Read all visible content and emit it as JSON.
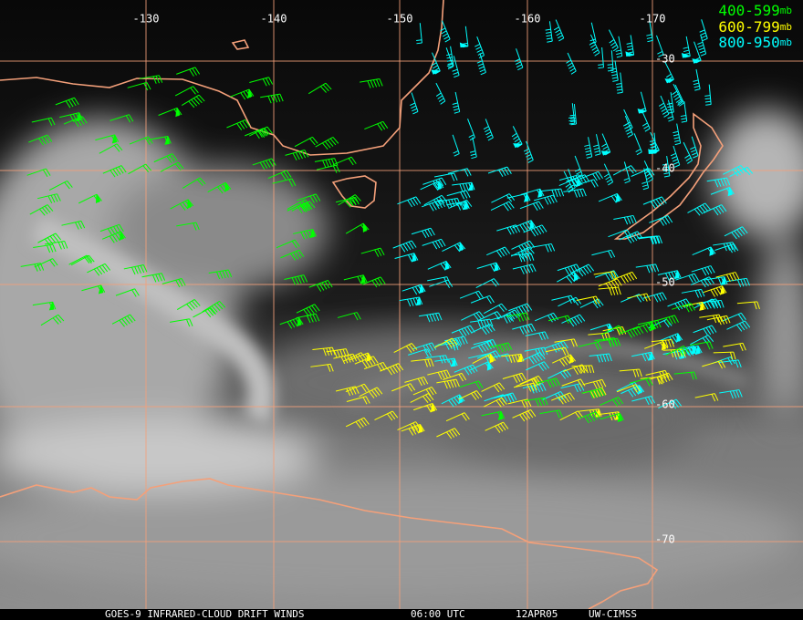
{
  "longitude_labels": [
    "-130",
    "-140",
    "-150",
    "-160",
    "-170"
  ],
  "latitude_labels": [
    "-30",
    "-40",
    "-50",
    "-60",
    "-70"
  ],
  "legend": [
    {
      "range": "400-599",
      "unit": "mb"
    },
    {
      "range": "600-799",
      "unit": "mb"
    },
    {
      "range": "800-950",
      "unit": "mb"
    }
  ],
  "footer": {
    "product": "GOES-9 INFRARED-CLOUD DRIFT WINDS",
    "time": "06:00 UTC",
    "date": "12APR05",
    "source": "UW-CIMSS"
  }
}
